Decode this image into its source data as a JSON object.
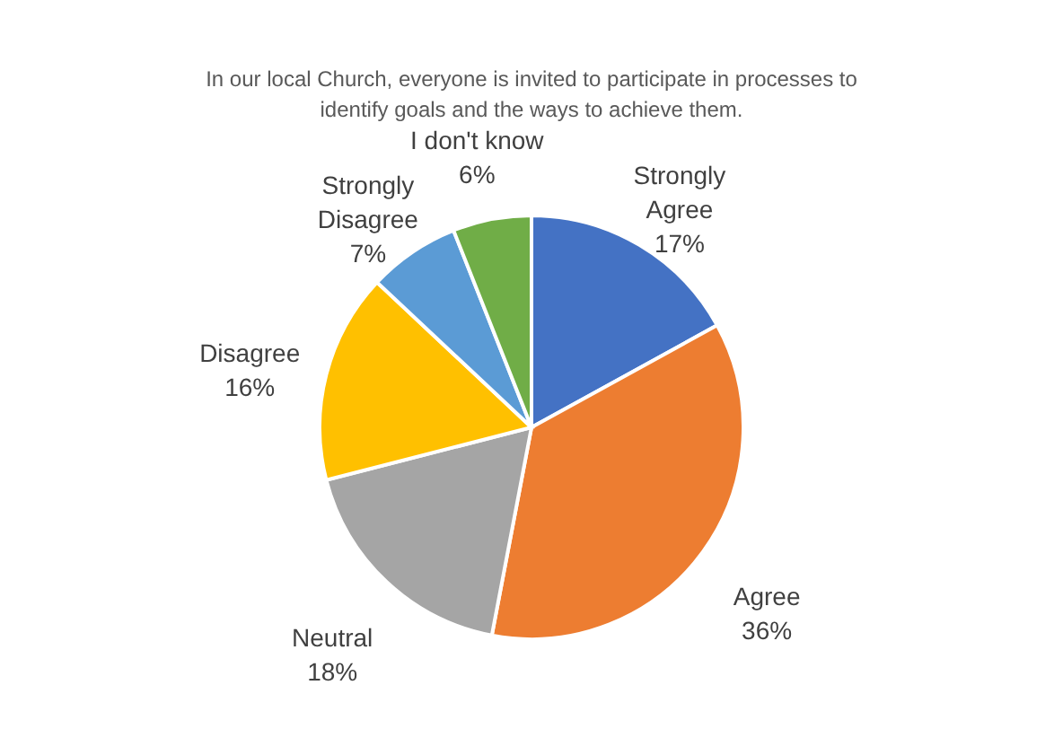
{
  "chart_data": {
    "type": "pie",
    "title": "In our local Church, everyone is invited to participate in processes to identify goals and the ways to achieve them.",
    "categories": [
      "Strongly Agree",
      "Agree",
      "Neutral",
      "Disagree",
      "Strongly Disagree",
      "I don't know"
    ],
    "values": [
      17,
      36,
      18,
      16,
      7,
      6
    ],
    "value_labels": [
      "17%",
      "36%",
      "18%",
      "16%",
      "7%",
      "6%"
    ],
    "colors": [
      "#4472c4",
      "#ed7d31",
      "#a5a5a5",
      "#ffc000",
      "#5b9bd5",
      "#70ad47"
    ]
  }
}
